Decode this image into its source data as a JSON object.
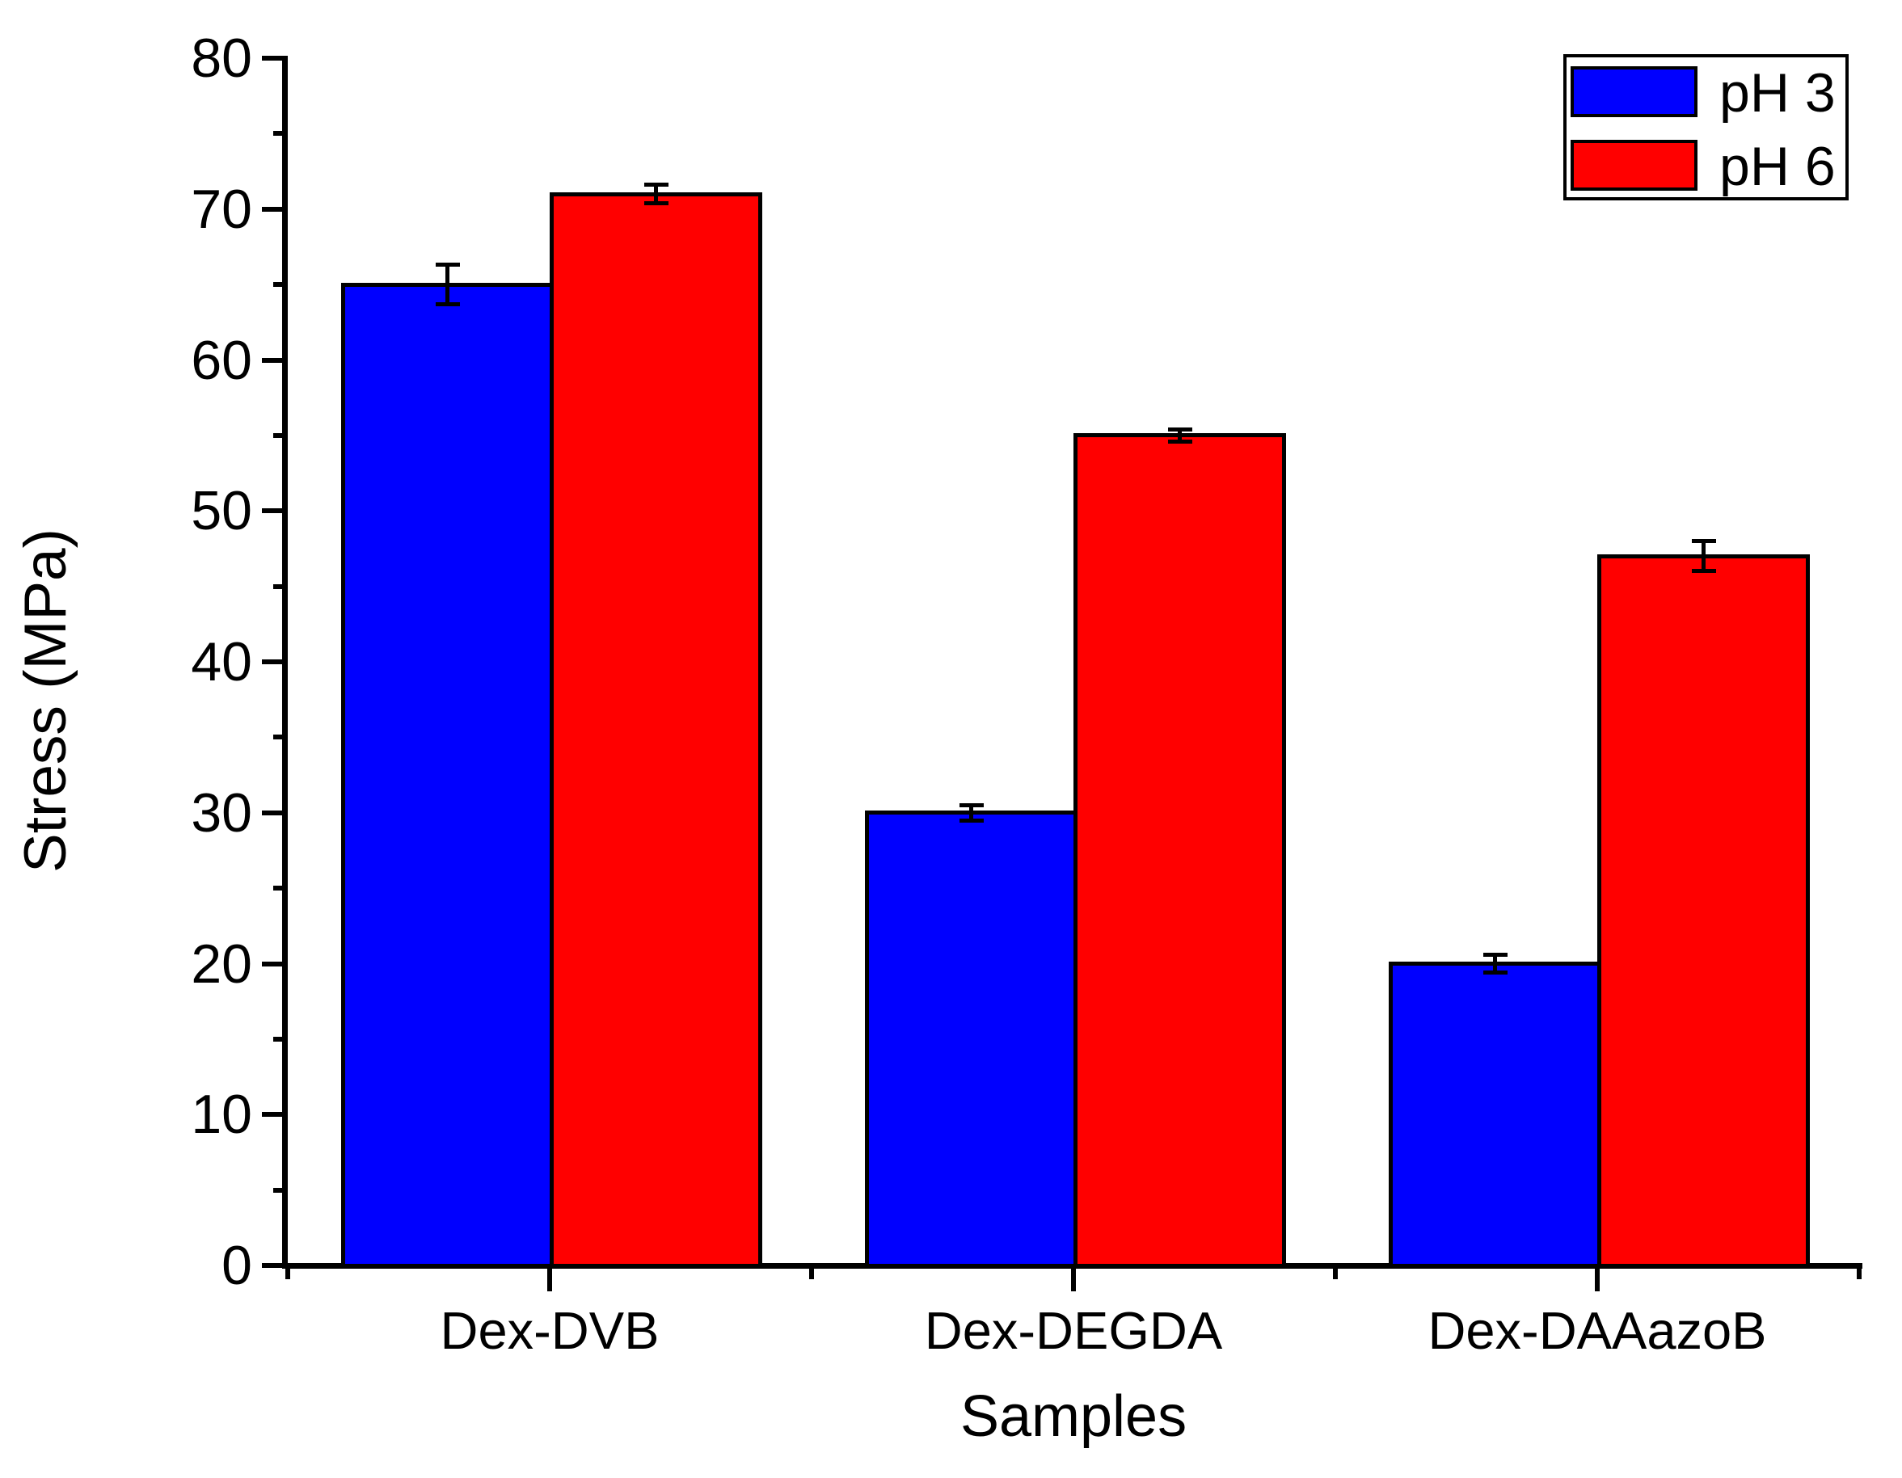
{
  "figure": {
    "background_color": "#ffffff",
    "axis_color": "#000000",
    "legend": {
      "position": "top-right",
      "border_color": "#000000",
      "items": [
        {
          "label": "pH 3",
          "color": "#0000ff"
        },
        {
          "label": "pH 6",
          "color": "#ff0000"
        }
      ]
    }
  },
  "chart_data": {
    "type": "bar",
    "title": "",
    "categories": [
      "Dex-DVB",
      "Dex-DEGDA",
      "Dex-DAAazoB"
    ],
    "series": [
      {
        "name": "pH 3",
        "color": "#0000ff",
        "values": [
          65,
          30,
          20
        ],
        "errors": [
          1.3,
          0.5,
          0.6
        ]
      },
      {
        "name": "pH 6",
        "color": "#ff0000",
        "values": [
          71,
          55,
          47
        ],
        "errors": [
          0.6,
          0.4,
          1.0
        ]
      }
    ],
    "xlabel": "Samples",
    "ylabel": "Stress (MPa)",
    "ylim": [
      0,
      80
    ],
    "y_major_step": 10,
    "y_minor_step": 5,
    "error_bars": true,
    "grid": false,
    "legend_position": "top-right",
    "bar_edge_color": "#000000"
  }
}
